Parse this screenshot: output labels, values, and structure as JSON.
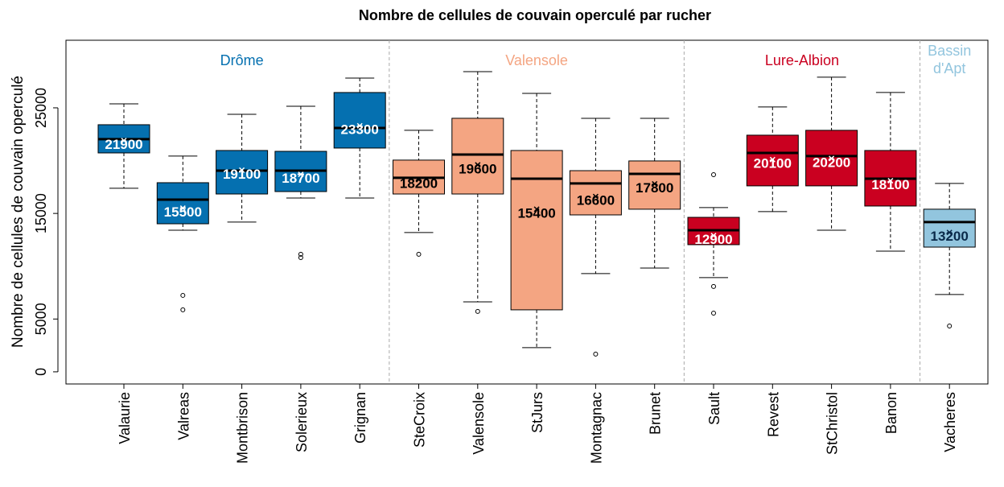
{
  "chart_data": {
    "type": "boxplot",
    "title": "Nombre de cellules de couvain operculé par rucher",
    "y_label": "Nombre de cellules de couvain operculé",
    "ylim": [
      -1150,
      31400
    ],
    "yticks": [
      0,
      5000,
      15000,
      25000
    ],
    "series": [
      {
        "name": "Drôme",
        "color": "#0570b0",
        "label_color": "#ffffff",
        "categories": [
          "Valaurie",
          "Valreas",
          "Montbrison",
          "Solerieux",
          "Grignan"
        ],
        "boxes": [
          {
            "whislo": 17380,
            "q1": 20730,
            "med": 22030,
            "q3": 23400,
            "whishi": 25380,
            "mean": 21900,
            "fliers": []
          },
          {
            "whislo": 13410,
            "q1": 14020,
            "med": 16310,
            "q3": 17910,
            "whishi": 20430,
            "mean": 15500,
            "fliers": [
              7240,
              5870
            ]
          },
          {
            "whislo": 14180,
            "q1": 16840,
            "med": 19050,
            "q3": 20960,
            "whishi": 24390,
            "mean": 19100,
            "fliers": []
          },
          {
            "whislo": 16460,
            "q1": 17070,
            "med": 19050,
            "q3": 20880,
            "whishi": 25150,
            "mean": 18700,
            "fliers": [
              11130,
              10820
            ]
          },
          {
            "whislo": 16460,
            "q1": 21190,
            "med": 23090,
            "q3": 26450,
            "whishi": 27820,
            "mean": 23300,
            "fliers": []
          }
        ]
      },
      {
        "name": "Valensole",
        "color": "#f4a582",
        "label_color": "#000000",
        "categories": [
          "SteCroix",
          "Valensole",
          "StJurs",
          "Montagnac",
          "Brunet"
        ],
        "boxes": [
          {
            "whislo": 13190,
            "q1": 16840,
            "med": 18370,
            "q3": 20050,
            "whishi": 22870,
            "mean": 18200,
            "fliers": [
              11130
            ]
          },
          {
            "whislo": 6630,
            "q1": 16840,
            "med": 20580,
            "q3": 24010,
            "whishi": 28430,
            "mean": 19600,
            "fliers": [
              5720
            ]
          },
          {
            "whislo": 2290,
            "q1": 5870,
            "med": 18290,
            "q3": 20960,
            "whishi": 26370,
            "mean": 15400,
            "fliers": []
          },
          {
            "whislo": 9300,
            "q1": 14860,
            "med": 17840,
            "q3": 19050,
            "whishi": 24010,
            "mean": 16600,
            "fliers": [
              1680
            ]
          },
          {
            "whislo": 9830,
            "q1": 15400,
            "med": 18750,
            "q3": 19970,
            "whishi": 24010,
            "mean": 17800,
            "fliers": []
          }
        ]
      },
      {
        "name": "Lure-Albion",
        "color": "#ca0020",
        "label_color": "#ffffff",
        "categories": [
          "Sault",
          "Revest",
          "StChristol",
          "Banon"
        ],
        "boxes": [
          {
            "whislo": 8920,
            "q1": 12040,
            "med": 13410,
            "q3": 14630,
            "whishi": 15550,
            "mean": 12900,
            "fliers": [
              18670,
              8080,
              5560
            ]
          },
          {
            "whislo": 15170,
            "q1": 17610,
            "med": 20730,
            "q3": 22410,
            "whishi": 25080,
            "mean": 20100,
            "fliers": []
          },
          {
            "whislo": 13410,
            "q1": 17610,
            "med": 20430,
            "q3": 22870,
            "whishi": 27900,
            "mean": 20200,
            "fliers": []
          },
          {
            "whislo": 11430,
            "q1": 15700,
            "med": 18290,
            "q3": 20960,
            "whishi": 26450,
            "mean": 18100,
            "fliers": []
          }
        ]
      },
      {
        "name": "Bassin d'Apt",
        "color": "#92c5de",
        "label_color": "#0a2a4a",
        "categories": [
          "Vacheres"
        ],
        "boxes": [
          {
            "whislo": 7320,
            "q1": 11810,
            "med": 14180,
            "q3": 15400,
            "whishi": 17840,
            "mean": 13200,
            "fliers": [
              4340
            ]
          }
        ]
      }
    ]
  }
}
